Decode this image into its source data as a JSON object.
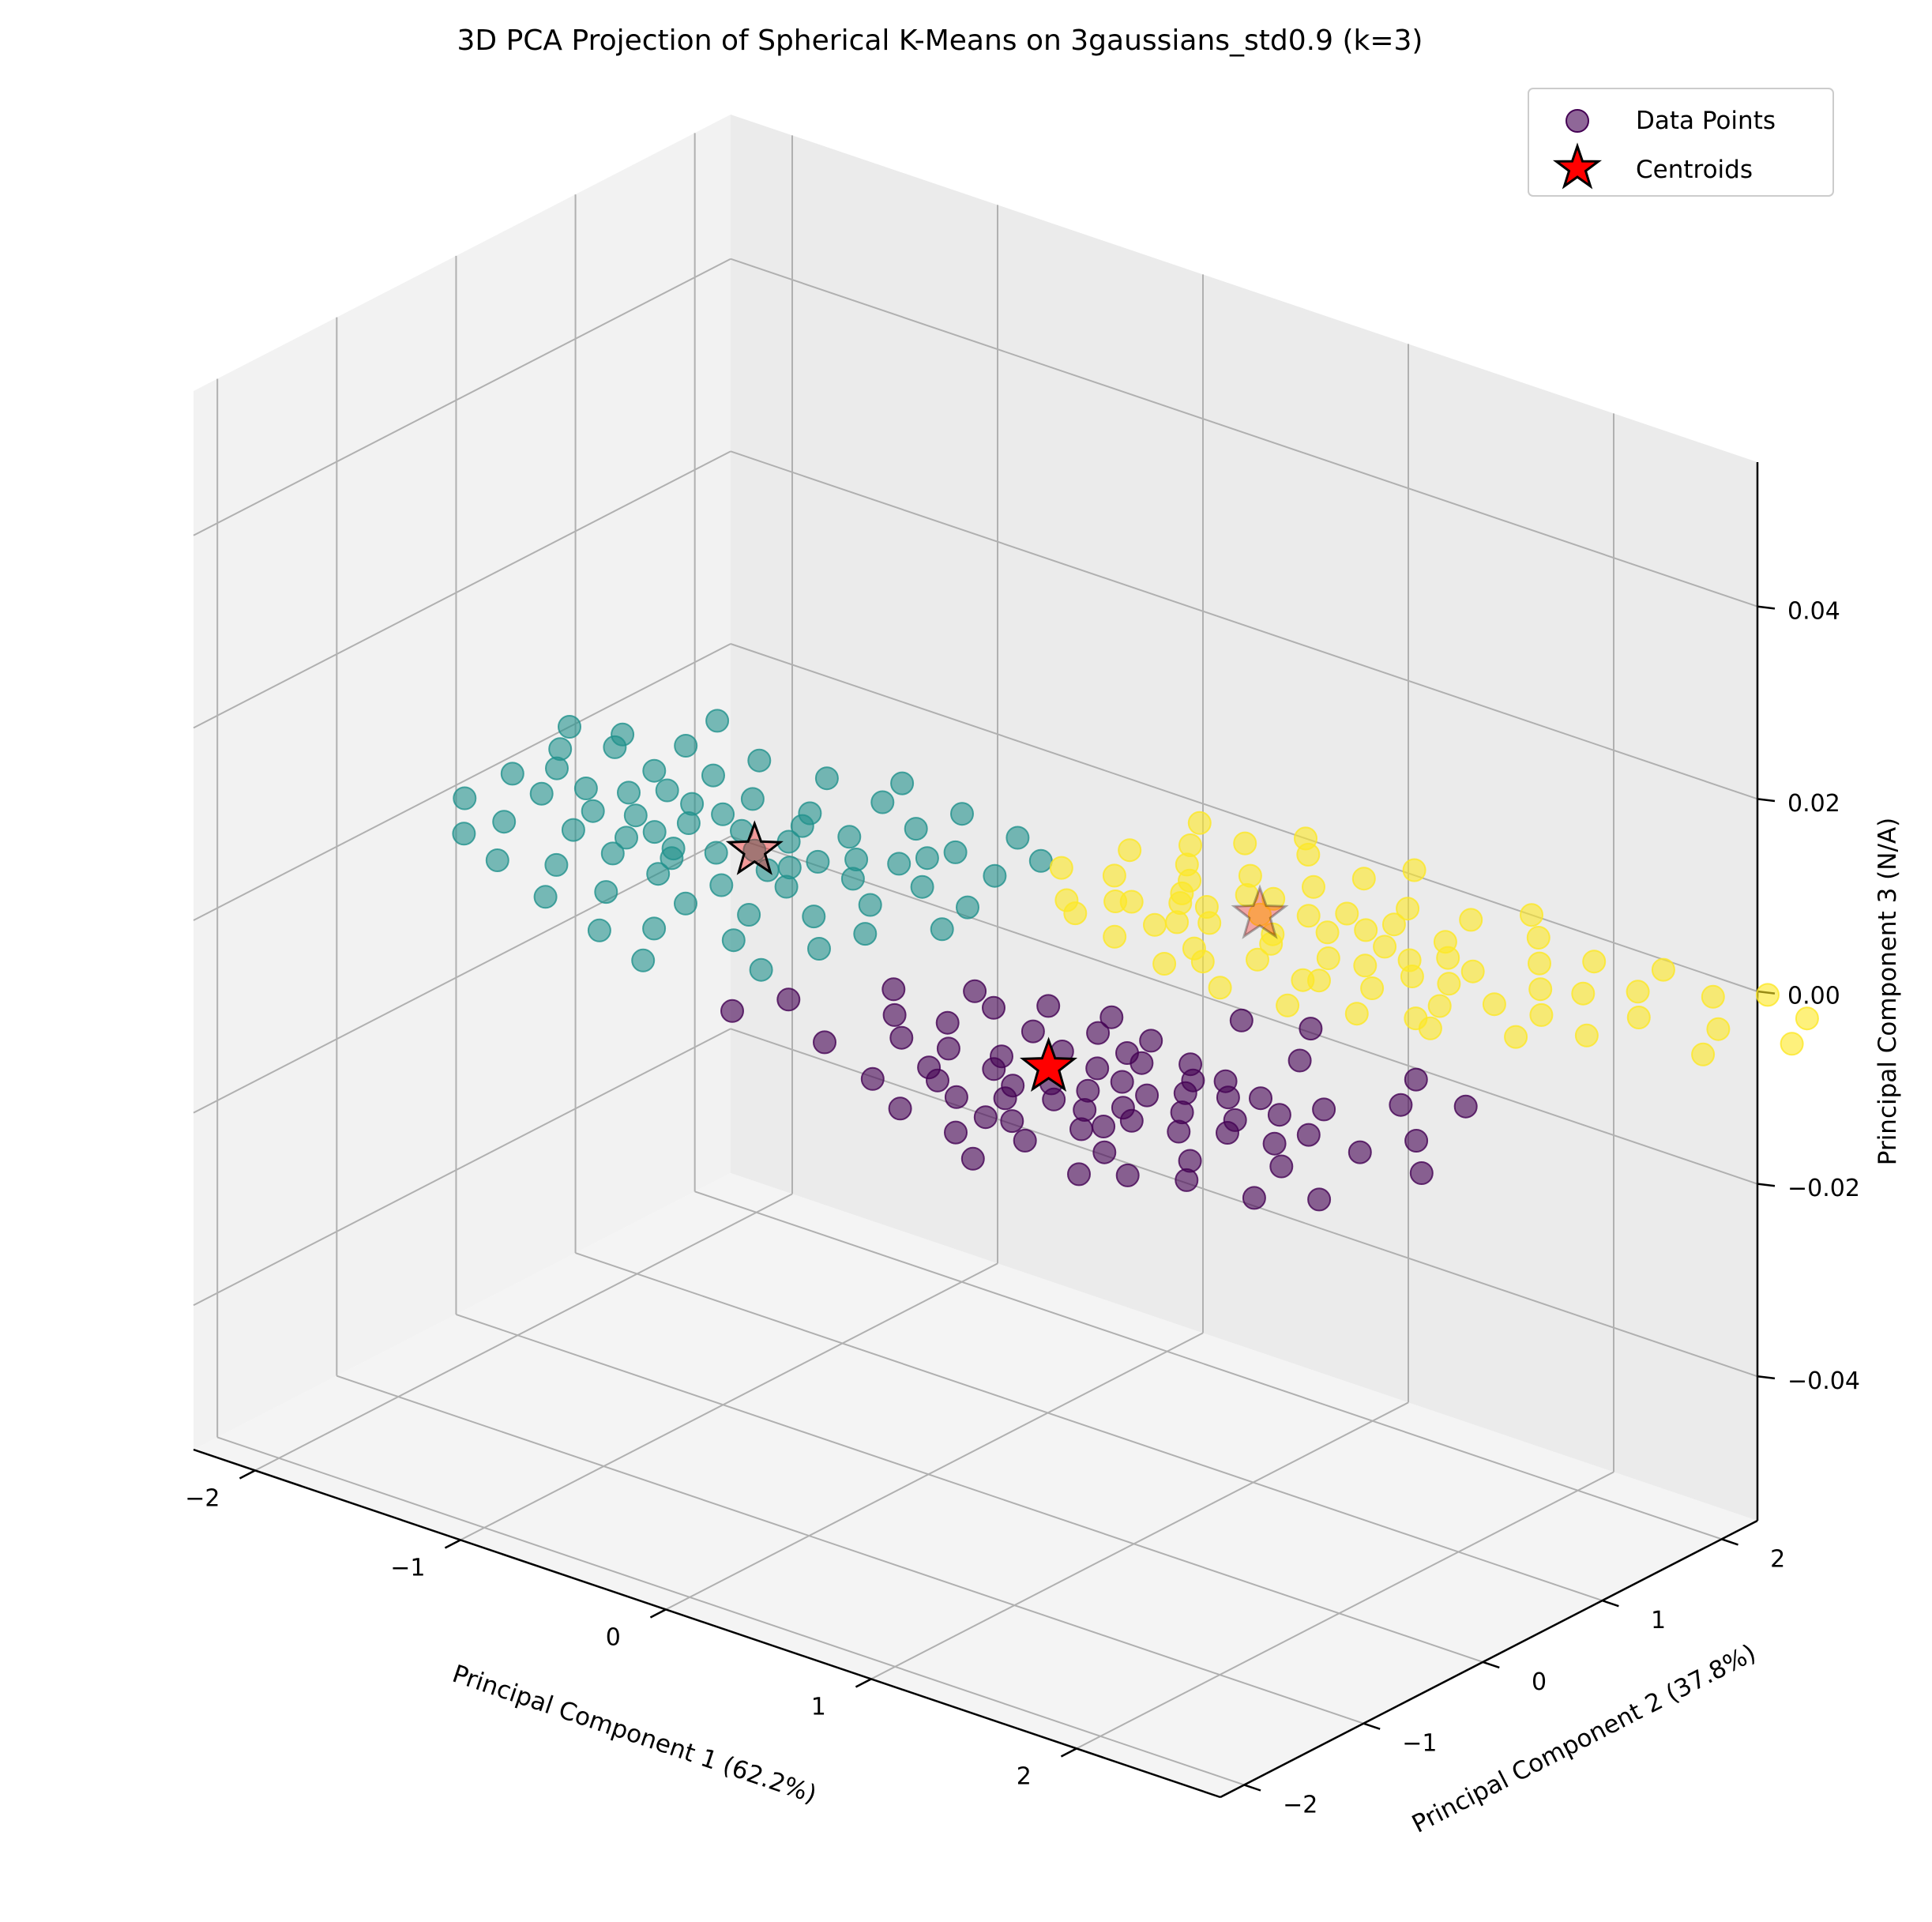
{
  "chart_data": {
    "type": "scatter3d",
    "title": "3D PCA Projection of Spherical K-Means on 3gaussians_std0.9 (k=3)",
    "xlabel": "Principal Component 1 (62.2%)",
    "ylabel": "Principal Component 2 (37.8%)",
    "zlabel": "Principal Component 3 (N/A)",
    "xlim": [
      -2.3,
      2.7
    ],
    "ylim": [
      -2.2,
      2.3
    ],
    "zlim": [
      -0.055,
      0.055
    ],
    "x_ticks": [
      -2,
      -1,
      0,
      1,
      2
    ],
    "x_tick_labels": [
      "−2",
      "−1",
      "0",
      "1",
      "2"
    ],
    "y_ticks": [
      -2,
      -1,
      0,
      1,
      2
    ],
    "y_tick_labels": [
      "−2",
      "−1",
      "0",
      "1",
      "2"
    ],
    "z_ticks": [
      -0.04,
      -0.02,
      0.0,
      0.02,
      0.04
    ],
    "z_tick_labels": [
      "−0.04",
      "−0.02",
      "0.00",
      "0.02",
      "0.04"
    ],
    "grid": true,
    "legend": {
      "placement": "top-right",
      "entries": [
        {
          "label": "Data Points",
          "marker": "circle",
          "color": "#440154"
        },
        {
          "label": "Centroids",
          "marker": "star",
          "color": "#ff0000"
        }
      ]
    },
    "cluster_colors": [
      "#440154",
      "#21918c",
      "#fde725"
    ],
    "centroids": [
      {
        "cluster": 0,
        "x": 1.05,
        "y": -0.8,
        "z": 0.0,
        "color": "#ff0000"
      },
      {
        "cluster": 1,
        "x": -1.05,
        "y": 0.35,
        "z": 0.0,
        "color": "#ff0000"
      },
      {
        "cluster": 2,
        "x": 0.8,
        "y": 1.4,
        "z": 0.0,
        "color": "#ff0000"
      }
    ],
    "series": [
      {
        "cluster": 0,
        "color": "#440154",
        "points": [
          [
            1.05,
            -0.8
          ],
          [
            1.2,
            -0.65
          ],
          [
            0.9,
            -1.0
          ],
          [
            1.3,
            -0.9
          ],
          [
            0.8,
            -0.5
          ],
          [
            1.5,
            -0.75
          ],
          [
            1.6,
            -0.6
          ],
          [
            1.7,
            -0.8
          ],
          [
            1.4,
            -1.1
          ],
          [
            1.1,
            -1.25
          ],
          [
            0.95,
            -1.4
          ],
          [
            1.25,
            -1.45
          ],
          [
            1.55,
            -1.2
          ],
          [
            1.8,
            -1.0
          ],
          [
            1.9,
            -0.7
          ],
          [
            2.0,
            -0.5
          ],
          [
            2.1,
            -0.3
          ],
          [
            2.2,
            -0.6
          ],
          [
            1.85,
            -0.4
          ],
          [
            1.65,
            -0.35
          ],
          [
            1.45,
            -0.3
          ],
          [
            1.2,
            -0.2
          ],
          [
            0.95,
            -0.1
          ],
          [
            0.7,
            -0.2
          ],
          [
            0.55,
            -0.4
          ],
          [
            0.5,
            -0.7
          ],
          [
            0.45,
            -1.0
          ],
          [
            0.7,
            -1.2
          ],
          [
            0.6,
            -1.5
          ],
          [
            0.85,
            -1.7
          ],
          [
            1.15,
            -1.75
          ],
          [
            1.4,
            -1.6
          ],
          [
            1.7,
            -1.45
          ],
          [
            2.0,
            -1.25
          ],
          [
            2.3,
            -1.0
          ],
          [
            2.45,
            -0.6
          ],
          [
            2.55,
            -0.3
          ],
          [
            2.1,
            -1.45
          ],
          [
            1.75,
            -1.75
          ],
          [
            1.35,
            -1.95
          ],
          [
            1.0,
            -0.6
          ],
          [
            1.15,
            -0.95
          ],
          [
            1.35,
            -0.7
          ],
          [
            1.5,
            -0.95
          ],
          [
            1.6,
            -1.05
          ],
          [
            1.95,
            -0.85
          ],
          [
            1.3,
            -0.45
          ],
          [
            0.85,
            -0.85
          ],
          [
            0.65,
            -0.95
          ],
          [
            1.25,
            -1.1
          ],
          [
            1.05,
            -1.1
          ],
          [
            1.75,
            -0.5
          ],
          [
            2.15,
            -0.8
          ],
          [
            1.55,
            -0.45
          ],
          [
            0.3,
            -0.8
          ],
          [
            0.25,
            -1.3
          ],
          [
            -0.1,
            -1.0
          ],
          [
            -0.2,
            -1.3
          ],
          [
            0.15,
            -0.55
          ],
          [
            0.4,
            -0.3
          ],
          [
            2.5,
            0.2
          ],
          [
            2.3,
            0.0
          ],
          [
            2.75,
            -0.6
          ],
          [
            2.2,
            0.3
          ],
          [
            1.75,
            0.1
          ],
          [
            1.6,
            0.45
          ],
          [
            1.35,
            0.3
          ],
          [
            1.9,
            -1.6
          ],
          [
            1.5,
            -1.3
          ],
          [
            1.15,
            -1.5
          ],
          [
            0.8,
            -1.3
          ],
          [
            2.4,
            -1.4
          ],
          [
            2.6,
            -1.2
          ],
          [
            1.0,
            -0.3
          ],
          [
            1.2,
            -0.4
          ]
        ]
      },
      {
        "cluster": 1,
        "color": "#21918c",
        "points": [
          [
            -1.05,
            0.35
          ],
          [
            -1.2,
            0.5
          ],
          [
            -0.9,
            0.2
          ],
          [
            -1.3,
            0.1
          ],
          [
            -1.4,
            0.4
          ],
          [
            -1.6,
            0.3
          ],
          [
            -1.5,
            0.6
          ],
          [
            -1.75,
            0.5
          ],
          [
            -1.9,
            0.4
          ],
          [
            -2.0,
            0.2
          ],
          [
            -2.1,
            0.5
          ],
          [
            -2.2,
            0.7
          ],
          [
            -2.05,
            0.9
          ],
          [
            -1.8,
            0.8
          ],
          [
            -1.6,
            0.95
          ],
          [
            -1.35,
            0.85
          ],
          [
            -1.1,
            0.9
          ],
          [
            -0.85,
            0.8
          ],
          [
            -0.7,
            0.6
          ],
          [
            -0.6,
            0.4
          ],
          [
            -0.75,
            0.1
          ],
          [
            -0.95,
            -0.1
          ],
          [
            -1.2,
            -0.2
          ],
          [
            -1.45,
            -0.15
          ],
          [
            -1.7,
            -0.05
          ],
          [
            -1.95,
            -0.2
          ],
          [
            -2.2,
            -0.1
          ],
          [
            -1.55,
            -0.45
          ],
          [
            -1.25,
            -0.55
          ],
          [
            -0.95,
            -0.4
          ],
          [
            -0.7,
            -0.3
          ],
          [
            -0.5,
            -0.1
          ],
          [
            -0.4,
            0.2
          ],
          [
            -0.35,
            0.55
          ],
          [
            -0.5,
            0.85
          ],
          [
            -0.7,
            1.1
          ],
          [
            -0.95,
            1.25
          ],
          [
            -1.25,
            1.3
          ],
          [
            -1.55,
            1.25
          ],
          [
            -1.85,
            1.15
          ],
          [
            -2.1,
            1.05
          ],
          [
            -2.3,
            0.95
          ],
          [
            -1.0,
            0.55
          ],
          [
            -1.15,
            0.2
          ],
          [
            -1.35,
            0.6
          ],
          [
            -1.45,
            0.2
          ],
          [
            -0.8,
            0.45
          ],
          [
            -1.65,
            0.65
          ],
          [
            -1.05,
            0.75
          ],
          [
            -0.85,
            0.3
          ],
          [
            -1.25,
            0.0
          ],
          [
            -1.5,
            0.05
          ],
          [
            -1.75,
            0.2
          ],
          [
            -0.55,
            0.7
          ],
          [
            -0.45,
            1.0
          ],
          [
            -0.2,
            0.9
          ],
          [
            -0.1,
            0.5
          ],
          [
            -0.05,
            0.2
          ],
          [
            -0.25,
            -0.1
          ],
          [
            -0.3,
            -0.4
          ],
          [
            -0.6,
            -0.6
          ],
          [
            -0.9,
            -0.75
          ],
          [
            -1.4,
            -0.8
          ],
          [
            -1.75,
            -0.6
          ],
          [
            -2.0,
            -0.45
          ],
          [
            -0.65,
            1.4
          ],
          [
            -0.35,
            1.35
          ],
          [
            -1.0,
            1.5
          ],
          [
            -1.9,
            1.5
          ],
          [
            -0.15,
            1.2
          ],
          [
            -2.2,
            0.3
          ],
          [
            -1.05,
            -0.95
          ],
          [
            -0.75,
            -1.1
          ],
          [
            -0.35,
            -0.8
          ]
        ]
      },
      {
        "cluster": 2,
        "color": "#fde725",
        "points": [
          [
            0.8,
            1.4
          ],
          [
            0.65,
            1.55
          ],
          [
            0.95,
            1.25
          ],
          [
            1.1,
            1.45
          ],
          [
            0.5,
            1.25
          ],
          [
            0.4,
            1.5
          ],
          [
            0.55,
            1.75
          ],
          [
            0.8,
            1.85
          ],
          [
            1.05,
            1.7
          ],
          [
            1.25,
            1.2
          ],
          [
            1.35,
            1.5
          ],
          [
            1.5,
            1.75
          ],
          [
            1.6,
            1.3
          ],
          [
            1.75,
            1.55
          ],
          [
            1.9,
            1.85
          ],
          [
            2.05,
            1.6
          ],
          [
            2.2,
            1.35
          ],
          [
            1.85,
            1.1
          ],
          [
            1.55,
            1.05
          ],
          [
            1.3,
            0.9
          ],
          [
            1.05,
            0.95
          ],
          [
            0.8,
            0.85
          ],
          [
            0.55,
            0.95
          ],
          [
            0.3,
            1.05
          ],
          [
            0.15,
            1.3
          ],
          [
            0.05,
            1.6
          ],
          [
            0.2,
            1.85
          ],
          [
            0.35,
            2.05
          ],
          [
            0.6,
            2.15
          ],
          [
            0.9,
            2.1
          ],
          [
            1.2,
            1.95
          ],
          [
            1.45,
            2.05
          ],
          [
            1.75,
            2.1
          ],
          [
            2.05,
            2.05
          ],
          [
            2.35,
            1.9
          ],
          [
            2.5,
            1.65
          ],
          [
            2.45,
            1.3
          ],
          [
            2.25,
            1.05
          ],
          [
            1.95,
            0.85
          ],
          [
            1.65,
            0.75
          ],
          [
            1.4,
            0.6
          ],
          [
            1.1,
            0.55
          ],
          [
            0.8,
            0.6
          ],
          [
            0.5,
            0.7
          ],
          [
            0.25,
            0.8
          ],
          [
            0.7,
            1.15
          ],
          [
            0.95,
            1.55
          ],
          [
            1.2,
            1.6
          ],
          [
            0.45,
            1.35
          ],
          [
            1.6,
            1.6
          ],
          [
            0.75,
            1.6
          ],
          [
            1.0,
            1.15
          ],
          [
            1.4,
            1.25
          ],
          [
            1.25,
            1.75
          ],
          [
            0.6,
            1.3
          ],
          [
            0.3,
            1.65
          ],
          [
            2.6,
            2.1
          ],
          [
            2.75,
            2.3
          ],
          [
            3.0,
            2.2
          ],
          [
            2.8,
            1.8
          ],
          [
            2.9,
            1.5
          ],
          [
            3.1,
            1.9
          ],
          [
            2.3,
            2.2
          ],
          [
            0.1,
            2.1
          ],
          [
            0.5,
            2.3
          ],
          [
            1.0,
            2.35
          ],
          [
            1.6,
            2.3
          ],
          [
            2.0,
            1.3
          ],
          [
            2.2,
            1.7
          ],
          [
            1.35,
            0.95
          ],
          [
            0.9,
            0.75
          ],
          [
            0.6,
            1.05
          ],
          [
            1.75,
            1.35
          ],
          [
            0.35,
            1.1
          ],
          [
            0.15,
            0.9
          ],
          [
            -0.05,
            1.2
          ],
          [
            1.5,
            1.45
          ],
          [
            1.85,
            0.9
          ]
        ]
      }
    ]
  }
}
